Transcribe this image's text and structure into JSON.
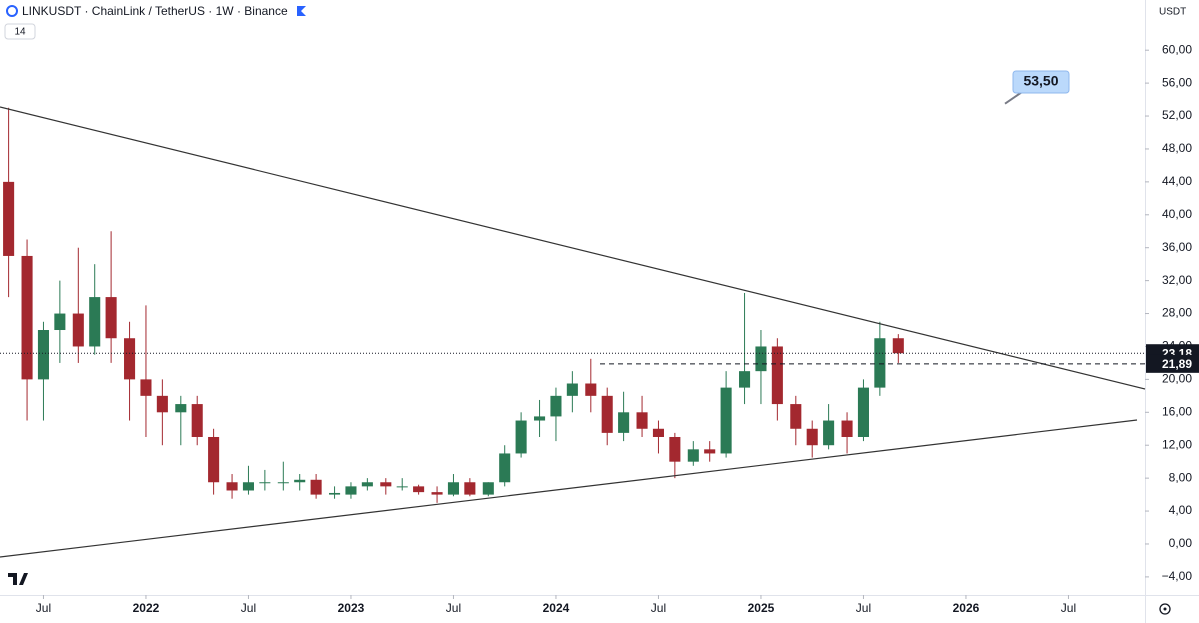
{
  "chart_data": {
    "type": "candlestick",
    "title": "LINKUSDT · ChainLink / TetherUS · 1W · Binance",
    "indicator_label": "14",
    "currency": "USDT",
    "up_color": "#2b7a55",
    "down_color": "#a3282f",
    "x": [
      2021.33,
      2021.42,
      2021.5,
      2021.58,
      2021.67,
      2021.75,
      2021.83,
      2021.92,
      2022.0,
      2022.08,
      2022.17,
      2022.25,
      2022.33,
      2022.42,
      2022.5,
      2022.58,
      2022.67,
      2022.75,
      2022.83,
      2022.92,
      2023.0,
      2023.08,
      2023.17,
      2023.25,
      2023.33,
      2023.42,
      2023.5,
      2023.58,
      2023.67,
      2023.75,
      2023.83,
      2023.92,
      2024.0,
      2024.08,
      2024.17,
      2024.25,
      2024.33,
      2024.42,
      2024.5,
      2024.58,
      2024.67,
      2024.75,
      2024.83,
      2024.92,
      2025.0,
      2025.08,
      2025.17,
      2025.25,
      2025.33,
      2025.42,
      2025.5,
      2025.58,
      2025.67
    ],
    "open": [
      44,
      35,
      20,
      26,
      28,
      24,
      30,
      25,
      20,
      18,
      16,
      17,
      13,
      7.5,
      6.5,
      7.5,
      7.5,
      7.5,
      7.8,
      6,
      6,
      7,
      7.5,
      7,
      7,
      6.3,
      6,
      7.5,
      6,
      7.5,
      11,
      15,
      15.5,
      18,
      19.5,
      18,
      13.5,
      16,
      14,
      13,
      10,
      11.5,
      11,
      19,
      21,
      24,
      17,
      14,
      12,
      15,
      13,
      19,
      25
    ],
    "high": [
      53,
      37,
      27,
      32,
      36,
      34,
      38,
      27,
      29,
      20,
      18,
      18,
      14,
      8.5,
      9.5,
      9,
      10,
      8.5,
      8.5,
      7,
      7.5,
      8,
      8,
      8,
      7.2,
      7,
      8.5,
      8,
      7.5,
      12,
      16,
      17.5,
      19,
      21,
      22.5,
      19,
      18.5,
      18,
      15,
      13.5,
      12.5,
      12.5,
      21,
      30.5,
      26,
      25,
      18,
      15,
      17,
      16,
      20,
      27,
      25.5
    ],
    "low": [
      30,
      15,
      15,
      22,
      22,
      23,
      22,
      15,
      13,
      12,
      12,
      12,
      6,
      5.5,
      6,
      6.5,
      6.5,
      6.5,
      5.5,
      5.5,
      5.5,
      6.5,
      6,
      6.5,
      6,
      5,
      5.8,
      5.8,
      5.8,
      7,
      10.5,
      13,
      12.5,
      16,
      16,
      12,
      12.5,
      13,
      11,
      8,
      9.5,
      10,
      10.5,
      17,
      17,
      15,
      12,
      10.5,
      11.5,
      11,
      12.5,
      18,
      22
    ],
    "close": [
      35,
      20,
      26,
      28,
      24,
      30,
      25,
      20,
      18,
      16,
      17,
      13,
      7.5,
      6.5,
      7.5,
      7.5,
      7.5,
      7.8,
      6,
      6.2,
      7,
      7.5,
      7,
      7,
      6.3,
      6,
      7.5,
      6,
      7.5,
      11,
      15,
      15.5,
      18,
      19.5,
      18,
      13.5,
      16,
      14,
      13,
      10,
      11.5,
      11,
      19,
      21,
      24,
      17,
      14,
      12,
      15,
      13,
      19,
      25,
      23.18
    ],
    "xlim": [
      2021.288,
      2026.849
    ],
    "xticks": [
      {
        "value": 2021.5,
        "label": "Jul"
      },
      2022,
      {
        "value": 2022.5,
        "label": "Jul"
      },
      2023,
      {
        "value": 2023.5,
        "label": "Jul"
      },
      2024,
      {
        "value": 2024.5,
        "label": "Jul"
      },
      2025,
      {
        "value": 2025.5,
        "label": "Jul"
      },
      2026,
      {
        "value": 2026.5,
        "label": "Jul"
      }
    ],
    "ylim": [
      -6.2,
      66.1
    ],
    "yticks": [
      {
        "value": -4,
        "label": "−4,00"
      },
      {
        "value": 0,
        "label": "0,00"
      },
      {
        "value": 4,
        "label": "4,00"
      },
      {
        "value": 8,
        "label": "8,00"
      },
      {
        "value": 12,
        "label": "12,00"
      },
      {
        "value": 16,
        "label": "16,00"
      },
      {
        "value": 20,
        "label": "20,00"
      },
      {
        "value": 24,
        "label": "24,00"
      },
      {
        "value": 28,
        "label": "28,00"
      },
      {
        "value": 32,
        "label": "32,00"
      },
      {
        "value": 36,
        "label": "36,00"
      },
      {
        "value": 40,
        "label": "40,00"
      },
      {
        "value": 44,
        "label": "44,00"
      },
      {
        "value": 48,
        "label": "48,00"
      },
      {
        "value": 52,
        "label": "52,00"
      },
      {
        "value": 56,
        "label": "56,00"
      },
      {
        "value": 60,
        "label": "60,00"
      }
    ],
    "price_labels": [
      {
        "value": 23.18,
        "label": "23,18"
      },
      {
        "value": 21.89,
        "label": "21,89"
      }
    ],
    "annotation": {
      "value": 53.5,
      "label": "53,50"
    }
  }
}
